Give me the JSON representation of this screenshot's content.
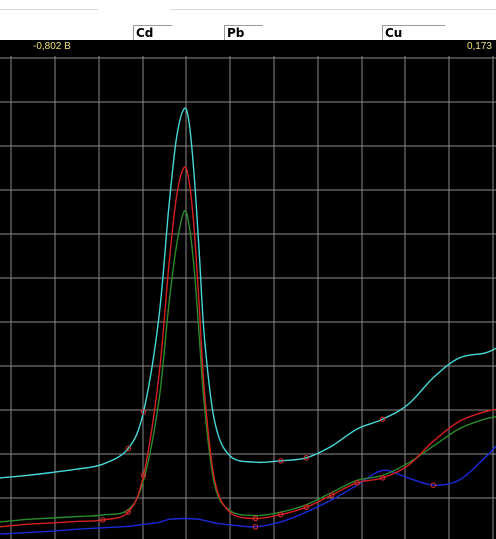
{
  "element_markers": [
    {
      "label": "Cd"
    },
    {
      "label": "Pb"
    },
    {
      "label": "Cu"
    }
  ],
  "axis": {
    "min_label": "-0,802 В",
    "max_label": "0,173"
  },
  "colors": {
    "background": "#000000",
    "grid": "#8c8c8c",
    "axis_text": "#f0e27a",
    "cyan_curve": "#46d6d6",
    "red_curve": "#d42020",
    "green_curve": "#2a8a2a",
    "blue_curve": "#1a2ad8"
  },
  "chart_data": {
    "type": "line",
    "title": "",
    "xlabel": "",
    "ylabel": "",
    "xlim": [
      -0.802,
      0.173
    ],
    "ylim": [
      0,
      100
    ],
    "grid": true,
    "series": [
      {
        "color": "#46d6d6",
        "x": [
          -0.802,
          -0.75,
          -0.7,
          -0.65,
          -0.6,
          -0.55,
          -0.52,
          -0.49,
          -0.47,
          -0.455,
          -0.44,
          -0.43,
          -0.42,
          -0.41,
          -0.4,
          -0.38,
          -0.35,
          -0.3,
          -0.25,
          -0.2,
          -0.15,
          -0.1,
          -0.05,
          0.0,
          0.05,
          0.1,
          0.15,
          0.173
        ],
        "y": [
          12.5,
          13.0,
          13.6,
          14.3,
          15.3,
          18.5,
          26,
          45,
          68,
          82,
          88,
          85,
          74,
          58,
          41,
          24,
          17,
          15.7,
          16.0,
          16.6,
          19,
          22.5,
          24.5,
          27.5,
          33,
          37,
          38,
          39
        ]
      },
      {
        "color": "#d42020",
        "x": [
          -0.802,
          -0.75,
          -0.7,
          -0.65,
          -0.6,
          -0.55,
          -0.52,
          -0.49,
          -0.47,
          -0.455,
          -0.44,
          -0.43,
          -0.42,
          -0.41,
          -0.4,
          -0.38,
          -0.35,
          -0.3,
          -0.25,
          -0.2,
          -0.15,
          -0.1,
          -0.05,
          0.0,
          0.05,
          0.1,
          0.15,
          0.173
        ],
        "y": [
          2.5,
          3.0,
          3.3,
          3.6,
          3.9,
          5.5,
          13,
          33,
          56,
          70,
          76,
          73,
          63,
          47,
          30,
          12,
          5.5,
          4.2,
          5.0,
          6.5,
          9,
          11.5,
          12.5,
          15,
          20,
          24,
          26,
          26.5
        ]
      },
      {
        "color": "#2a8a2a",
        "x": [
          -0.802,
          -0.75,
          -0.7,
          -0.65,
          -0.6,
          -0.55,
          -0.52,
          -0.49,
          -0.47,
          -0.455,
          -0.44,
          -0.43,
          -0.42,
          -0.41,
          -0.4,
          -0.38,
          -0.35,
          -0.3,
          -0.25,
          -0.2,
          -0.15,
          -0.1,
          -0.05,
          0.0,
          0.05,
          0.1,
          0.15,
          0.173
        ],
        "y": [
          3.5,
          4.0,
          4.3,
          4.6,
          4.9,
          6.0,
          12,
          28,
          48,
          60,
          67,
          64,
          55,
          41,
          27,
          11,
          5.8,
          4.8,
          5.5,
          7,
          9.5,
          12,
          13,
          15.5,
          19,
          22.5,
          24.5,
          25
        ]
      },
      {
        "color": "#1a2ad8",
        "x": [
          -0.802,
          -0.75,
          -0.7,
          -0.65,
          -0.6,
          -0.55,
          -0.52,
          -0.49,
          -0.47,
          -0.44,
          -0.41,
          -0.38,
          -0.35,
          -0.3,
          -0.25,
          -0.2,
          -0.15,
          -0.1,
          -0.05,
          0.0,
          0.05,
          0.1,
          0.15,
          0.173
        ],
        "y": [
          1.0,
          1.3,
          1.6,
          2.0,
          2.3,
          2.6,
          3.0,
          3.4,
          4.0,
          4.2,
          4.0,
          3.3,
          2.9,
          2.5,
          3.5,
          5.5,
          8,
          11,
          14,
          12.5,
          11,
          12,
          16.5,
          19
        ]
      }
    ]
  }
}
